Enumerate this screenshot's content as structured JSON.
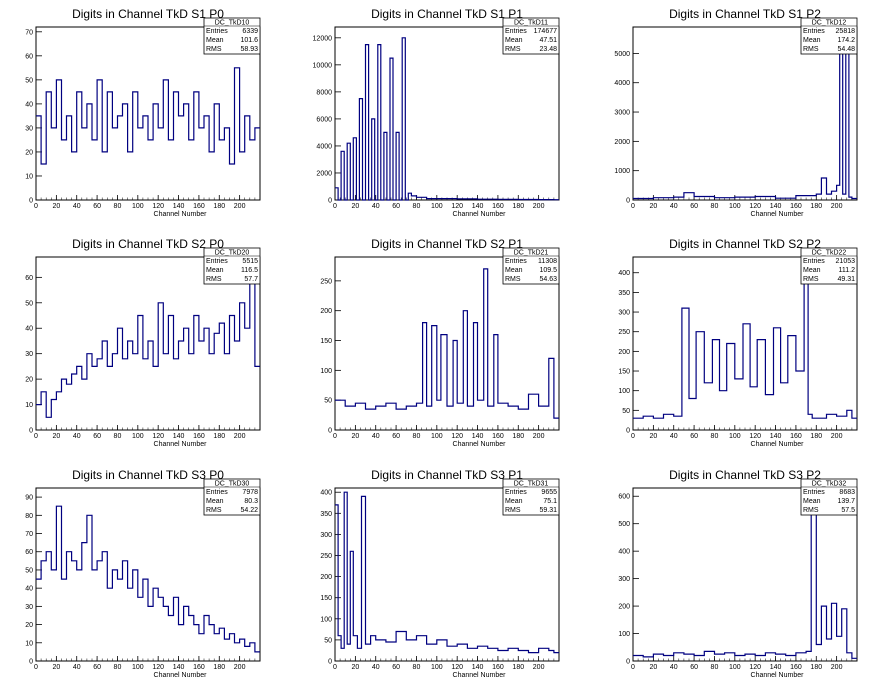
{
  "chart_data": [
    {
      "type": "line",
      "title": "Digits in Channel TkD S1 P0",
      "xlabel": "Channel Number",
      "xlim": [
        0,
        220
      ],
      "ylim": [
        0,
        72
      ],
      "xticks": [
        "0",
        "20",
        "40",
        "60",
        "80",
        "100",
        "120",
        "140",
        "160",
        "180",
        "200"
      ],
      "yticks": [
        "0",
        "10",
        "20",
        "30",
        "40",
        "50",
        "60",
        "70"
      ],
      "stats": {
        "name": "DC_TkD10",
        "entries": "6339",
        "mean": "101.6",
        "rms": "58.93"
      },
      "series": [
        {
          "x": [
            0,
            5,
            10,
            15,
            20,
            25,
            30,
            35,
            40,
            45,
            50,
            55,
            60,
            65,
            70,
            75,
            80,
            85,
            90,
            95,
            100,
            105,
            110,
            115,
            120,
            125,
            130,
            135,
            140,
            145,
            150,
            155,
            160,
            165,
            170,
            175,
            180,
            185,
            190,
            195,
            200,
            205,
            210,
            215
          ],
          "values": [
            35,
            15,
            45,
            30,
            50,
            25,
            35,
            20,
            45,
            30,
            40,
            25,
            50,
            20,
            45,
            30,
            35,
            40,
            20,
            45,
            30,
            35,
            25,
            40,
            30,
            50,
            25,
            45,
            35,
            40,
            25,
            45,
            30,
            35,
            20,
            40,
            25,
            30,
            15,
            55,
            20,
            35,
            25,
            30
          ]
        }
      ]
    },
    {
      "type": "line",
      "title": "Digits in Channel TkD S1 P1",
      "xlabel": "Channel Number",
      "xlim": [
        0,
        220
      ],
      "ylim": [
        0,
        12800
      ],
      "xticks": [
        "0",
        "20",
        "40",
        "60",
        "80",
        "100",
        "120",
        "140",
        "160",
        "180",
        "200"
      ],
      "yticks": [
        "0",
        "2000",
        "4000",
        "6000",
        "8000",
        "10000",
        "12000"
      ],
      "stats": {
        "name": "DC_TkD11",
        "entries": "174677",
        "mean": "47.51",
        "rms": "23.48"
      },
      "series": [
        {
          "x": [
            0,
            3,
            6,
            9,
            12,
            15,
            18,
            21,
            24,
            27,
            30,
            33,
            36,
            39,
            42,
            45,
            48,
            51,
            54,
            57,
            60,
            63,
            66,
            69,
            72,
            75,
            80,
            90,
            100,
            120,
            140,
            160,
            180,
            200,
            215
          ],
          "values": [
            900,
            0,
            3600,
            0,
            4200,
            0,
            4600,
            0,
            7500,
            0,
            11500,
            0,
            6000,
            0,
            11500,
            0,
            5000,
            0,
            10500,
            0,
            5000,
            0,
            12000,
            0,
            500,
            300,
            200,
            100,
            100,
            80,
            60,
            50,
            40,
            30,
            20
          ]
        }
      ]
    },
    {
      "type": "line",
      "title": "Digits in Channel TkD S1 P2",
      "xlabel": "Channel Number",
      "xlim": [
        0,
        220
      ],
      "ylim": [
        0,
        5900
      ],
      "xticks": [
        "0",
        "20",
        "40",
        "60",
        "80",
        "100",
        "120",
        "140",
        "160",
        "180",
        "200"
      ],
      "yticks": [
        "0",
        "1000",
        "2000",
        "3000",
        "4000",
        "5000"
      ],
      "stats": {
        "name": "DC_TkD12",
        "entries": "25818",
        "mean": "174.2",
        "rms": "54.48"
      },
      "series": [
        {
          "x": [
            0,
            20,
            40,
            50,
            60,
            80,
            100,
            120,
            140,
            160,
            180,
            185,
            190,
            195,
            200,
            203,
            206,
            209,
            212,
            215
          ],
          "values": [
            50,
            80,
            100,
            250,
            120,
            80,
            100,
            120,
            60,
            150,
            200,
            750,
            200,
            300,
            500,
            5500,
            200,
            5800,
            100,
            50
          ]
        }
      ]
    },
    {
      "type": "line",
      "title": "Digits in Channel TkD S2 P0",
      "xlabel": "Channel Number",
      "xlim": [
        0,
        220
      ],
      "ylim": [
        0,
        68
      ],
      "xticks": [
        "0",
        "20",
        "40",
        "60",
        "80",
        "100",
        "120",
        "140",
        "160",
        "180",
        "200"
      ],
      "yticks": [
        "0",
        "10",
        "20",
        "30",
        "40",
        "50",
        "60"
      ],
      "stats": {
        "name": "DC_TkD20",
        "entries": "5515",
        "mean": "116.5",
        "rms": "57.7"
      },
      "series": [
        {
          "x": [
            0,
            5,
            10,
            15,
            20,
            25,
            30,
            35,
            40,
            45,
            50,
            55,
            60,
            65,
            70,
            75,
            80,
            85,
            90,
            95,
            100,
            105,
            110,
            115,
            120,
            125,
            130,
            135,
            140,
            145,
            150,
            155,
            160,
            165,
            170,
            175,
            180,
            185,
            190,
            195,
            200,
            205,
            210,
            215
          ],
          "values": [
            10,
            15,
            5,
            12,
            15,
            20,
            18,
            22,
            25,
            20,
            30,
            25,
            28,
            35,
            25,
            30,
            40,
            28,
            35,
            30,
            45,
            28,
            35,
            25,
            50,
            30,
            45,
            28,
            35,
            40,
            30,
            45,
            35,
            40,
            30,
            38,
            42,
            30,
            45,
            35,
            50,
            40,
            60,
            25
          ]
        }
      ]
    },
    {
      "type": "line",
      "title": "Digits in Channel TkD S2 P1",
      "xlabel": "Channel Number",
      "xlim": [
        0,
        220
      ],
      "ylim": [
        0,
        290
      ],
      "xticks": [
        "0",
        "20",
        "40",
        "60",
        "80",
        "100",
        "120",
        "140",
        "160",
        "180",
        "200"
      ],
      "yticks": [
        "0",
        "50",
        "100",
        "150",
        "200",
        "250"
      ],
      "stats": {
        "name": "DC_TkD21",
        "entries": "11308",
        "mean": "109.5",
        "rms": "54.63"
      },
      "series": [
        {
          "x": [
            0,
            10,
            20,
            30,
            40,
            50,
            60,
            70,
            80,
            86,
            90,
            95,
            100,
            104,
            110,
            116,
            120,
            126,
            130,
            136,
            140,
            146,
            150,
            156,
            160,
            170,
            180,
            190,
            200,
            210,
            215
          ],
          "values": [
            50,
            40,
            45,
            35,
            40,
            45,
            35,
            40,
            45,
            180,
            40,
            175,
            50,
            160,
            40,
            150,
            45,
            200,
            40,
            180,
            50,
            270,
            40,
            160,
            45,
            40,
            35,
            60,
            40,
            120,
            20
          ]
        }
      ]
    },
    {
      "type": "line",
      "title": "Digits in Channel TkD S2 P2",
      "xlabel": "Channel Number",
      "xlim": [
        0,
        220
      ],
      "ylim": [
        0,
        440
      ],
      "xticks": [
        "0",
        "20",
        "40",
        "60",
        "80",
        "100",
        "120",
        "140",
        "160",
        "180",
        "200"
      ],
      "yticks": [
        "0",
        "50",
        "100",
        "150",
        "200",
        "250",
        "300",
        "350",
        "400"
      ],
      "stats": {
        "name": "DC_TkD22",
        "entries": "21053",
        "mean": "111.2",
        "rms": "49.31"
      },
      "series": [
        {
          "x": [
            0,
            10,
            20,
            30,
            40,
            48,
            55,
            62,
            70,
            78,
            85,
            92,
            100,
            108,
            115,
            122,
            130,
            138,
            145,
            152,
            160,
            168,
            172,
            176,
            180,
            190,
            200,
            210,
            215
          ],
          "values": [
            30,
            35,
            30,
            40,
            35,
            310,
            80,
            250,
            120,
            230,
            100,
            220,
            130,
            270,
            110,
            230,
            90,
            260,
            120,
            240,
            150,
            420,
            40,
            30,
            30,
            40,
            35,
            50,
            30
          ]
        }
      ]
    },
    {
      "type": "line",
      "title": "Digits in Channel TkD S3 P0",
      "xlabel": "Channel Number",
      "xlim": [
        0,
        220
      ],
      "ylim": [
        0,
        95
      ],
      "xticks": [
        "0",
        "20",
        "40",
        "60",
        "80",
        "100",
        "120",
        "140",
        "160",
        "180",
        "200"
      ],
      "yticks": [
        "0",
        "10",
        "20",
        "30",
        "40",
        "50",
        "60",
        "70",
        "80",
        "90"
      ],
      "stats": {
        "name": "DC_TkD30",
        "entries": "7978",
        "mean": "80.3",
        "rms": "54.22"
      },
      "series": [
        {
          "x": [
            0,
            5,
            10,
            15,
            20,
            25,
            30,
            35,
            40,
            45,
            50,
            55,
            60,
            65,
            70,
            75,
            80,
            85,
            90,
            95,
            100,
            105,
            110,
            115,
            120,
            125,
            130,
            135,
            140,
            145,
            150,
            155,
            160,
            165,
            170,
            175,
            180,
            185,
            190,
            195,
            200,
            205,
            210,
            215
          ],
          "values": [
            45,
            55,
            60,
            50,
            85,
            45,
            60,
            55,
            50,
            65,
            80,
            50,
            55,
            60,
            40,
            50,
            45,
            55,
            40,
            50,
            35,
            45,
            30,
            40,
            35,
            30,
            25,
            35,
            20,
            30,
            25,
            20,
            15,
            25,
            20,
            15,
            18,
            12,
            15,
            10,
            12,
            8,
            10,
            5
          ]
        }
      ]
    },
    {
      "type": "line",
      "title": "Digits in Channel TkD S3 P1",
      "xlabel": "Channel Number",
      "xlim": [
        0,
        220
      ],
      "ylim": [
        0,
        410
      ],
      "xticks": [
        "0",
        "20",
        "40",
        "60",
        "80",
        "100",
        "120",
        "140",
        "160",
        "180",
        "200"
      ],
      "yticks": [
        "0",
        "50",
        "100",
        "150",
        "200",
        "250",
        "300",
        "350",
        "400"
      ],
      "stats": {
        "name": "DC_TkD31",
        "entries": "9655",
        "mean": "75.1",
        "rms": "59.31"
      },
      "series": [
        {
          "x": [
            0,
            3,
            6,
            9,
            12,
            15,
            18,
            22,
            26,
            30,
            35,
            40,
            50,
            60,
            70,
            80,
            90,
            100,
            110,
            120,
            130,
            140,
            150,
            160,
            170,
            180,
            190,
            200,
            210,
            215
          ],
          "values": [
            370,
            60,
            30,
            400,
            40,
            260,
            60,
            30,
            390,
            40,
            60,
            50,
            45,
            70,
            50,
            60,
            40,
            50,
            35,
            40,
            30,
            35,
            30,
            25,
            30,
            25,
            20,
            30,
            25,
            20
          ]
        }
      ]
    },
    {
      "type": "line",
      "title": "Digits in Channel TkD S3 P2",
      "xlabel": "Channel Number",
      "xlim": [
        0,
        220
      ],
      "ylim": [
        0,
        630
      ],
      "xticks": [
        "0",
        "20",
        "40",
        "60",
        "80",
        "100",
        "120",
        "140",
        "160",
        "180",
        "200"
      ],
      "yticks": [
        "0",
        "100",
        "200",
        "300",
        "400",
        "500",
        "600"
      ],
      "stats": {
        "name": "DC_TkD32",
        "entries": "8683",
        "mean": "139.7",
        "rms": "57.5"
      },
      "series": [
        {
          "x": [
            0,
            10,
            20,
            30,
            40,
            50,
            60,
            70,
            80,
            90,
            100,
            110,
            120,
            130,
            140,
            150,
            160,
            170,
            175,
            180,
            185,
            190,
            195,
            200,
            205,
            210,
            215
          ],
          "values": [
            20,
            15,
            25,
            20,
            30,
            25,
            20,
            35,
            25,
            30,
            20,
            25,
            20,
            30,
            25,
            20,
            30,
            35,
            590,
            60,
            200,
            80,
            210,
            90,
            190,
            30,
            10
          ]
        }
      ]
    }
  ],
  "labels": {
    "entries": "Entries",
    "mean": "Mean",
    "rms": "RMS"
  },
  "colors": {
    "line": "#000080",
    "frame": "#000000",
    "background": "#ffffff"
  }
}
